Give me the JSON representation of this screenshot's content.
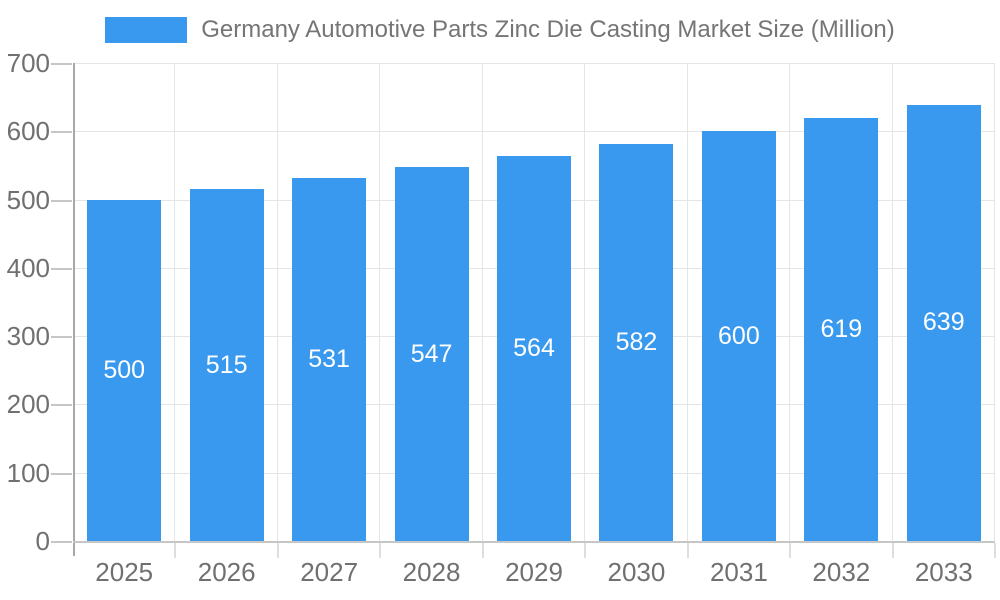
{
  "chart_data": {
    "type": "bar",
    "title": "Germany Automotive Parts Zinc Die Casting Market Size (Million)",
    "legend": {
      "position": "top",
      "entries": [
        {
          "label": "Germany Automotive Parts Zinc Die Casting Market Size (Million)",
          "color": "#3999EE"
        }
      ]
    },
    "categories": [
      "2025",
      "2026",
      "2027",
      "2028",
      "2029",
      "2030",
      "2031",
      "2032",
      "2033"
    ],
    "values": [
      500,
      515,
      531,
      547,
      564,
      582,
      600,
      619,
      639
    ],
    "value_labels": [
      "500",
      "515",
      "531",
      "547",
      "564",
      "582",
      "600",
      "619",
      "639"
    ],
    "value_label_position": "inside-center",
    "xlabel": "",
    "ylabel": "",
    "ylim": [
      0,
      700
    ],
    "yticks": [
      0,
      100,
      200,
      300,
      400,
      500,
      600,
      700
    ],
    "grid": "on",
    "colors": {
      "bar": "#3999EE",
      "bar_value_text": "#ffffff",
      "axis_text": "#707070",
      "legend_text": "#757575",
      "gridline": "#e5e5e5",
      "y_axis_line": "#a8a8a8",
      "x_axis_line": "#c6c6c6",
      "background": "#ffffff"
    }
  }
}
